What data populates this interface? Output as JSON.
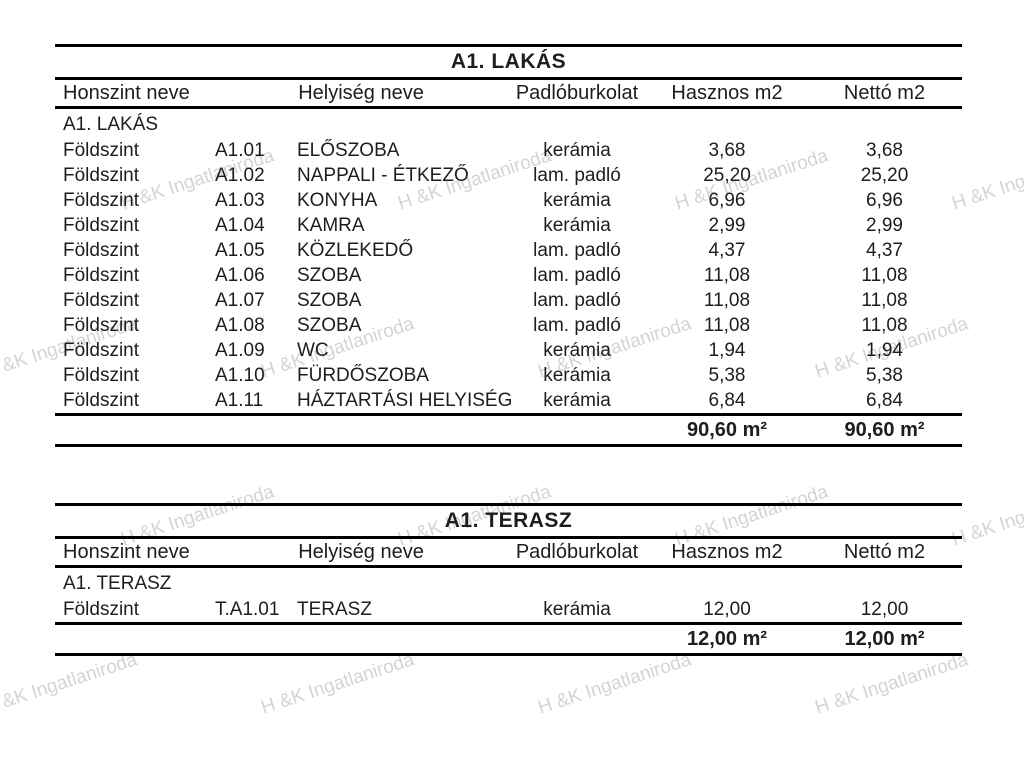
{
  "watermark": {
    "text": "H &K Ingatlaniroda",
    "color": "#d4d4d4"
  },
  "tables": [
    {
      "title": "A1. LAKÁS",
      "columns": {
        "floor": "Honszint neve",
        "room": "Helyiség neve",
        "flooring": "Padlóburkolat",
        "useful": "Hasznos m2",
        "net": "Nettó m2"
      },
      "section": "A1. LAKÁS",
      "rows": [
        [
          "Földszint",
          "A1.01",
          "ELŐSZOBA",
          "kerámia",
          "3,68",
          "3,68"
        ],
        [
          "Földszint",
          "A1.02",
          "NAPPALI - ÉTKEZŐ",
          "lam. padló",
          "25,20",
          "25,20"
        ],
        [
          "Földszint",
          "A1.03",
          "KONYHA",
          "kerámia",
          "6,96",
          "6,96"
        ],
        [
          "Földszint",
          "A1.04",
          "KAMRA",
          "kerámia",
          "2,99",
          "2,99"
        ],
        [
          "Földszint",
          "A1.05",
          "KÖZLEKEDŐ",
          "lam. padló",
          "4,37",
          "4,37"
        ],
        [
          "Földszint",
          "A1.06",
          "SZOBA",
          "lam. padló",
          "11,08",
          "11,08"
        ],
        [
          "Földszint",
          "A1.07",
          "SZOBA",
          "lam. padló",
          "11,08",
          "11,08"
        ],
        [
          "Földszint",
          "A1.08",
          "SZOBA",
          "lam. padló",
          "11,08",
          "11,08"
        ],
        [
          "Földszint",
          "A1.09",
          "WC",
          "kerámia",
          "1,94",
          "1,94"
        ],
        [
          "Földszint",
          "A1.10",
          "FÜRDŐSZOBA",
          "kerámia",
          "5,38",
          "5,38"
        ],
        [
          "Földszint",
          "A1.11",
          "HÁZTARTÁSI HELYISÉG",
          "kerámia",
          "6,84",
          "6,84"
        ]
      ],
      "totals": {
        "useful": "90,60 m²",
        "net": "90,60 m²"
      }
    },
    {
      "title": "A1. TERASZ",
      "columns": {
        "floor": "Honszint neve",
        "room": "Helyiség neve",
        "flooring": "Padlóburkolat",
        "useful": "Hasznos m2",
        "net": "Nettó m2"
      },
      "section": "A1. TERASZ",
      "rows": [
        [
          "Földszint",
          "T.A1.01",
          "TERASZ",
          "kerámia",
          "12,00",
          "12,00"
        ]
      ],
      "totals": {
        "useful": "12,00 m²",
        "net": "12,00 m²"
      }
    }
  ]
}
